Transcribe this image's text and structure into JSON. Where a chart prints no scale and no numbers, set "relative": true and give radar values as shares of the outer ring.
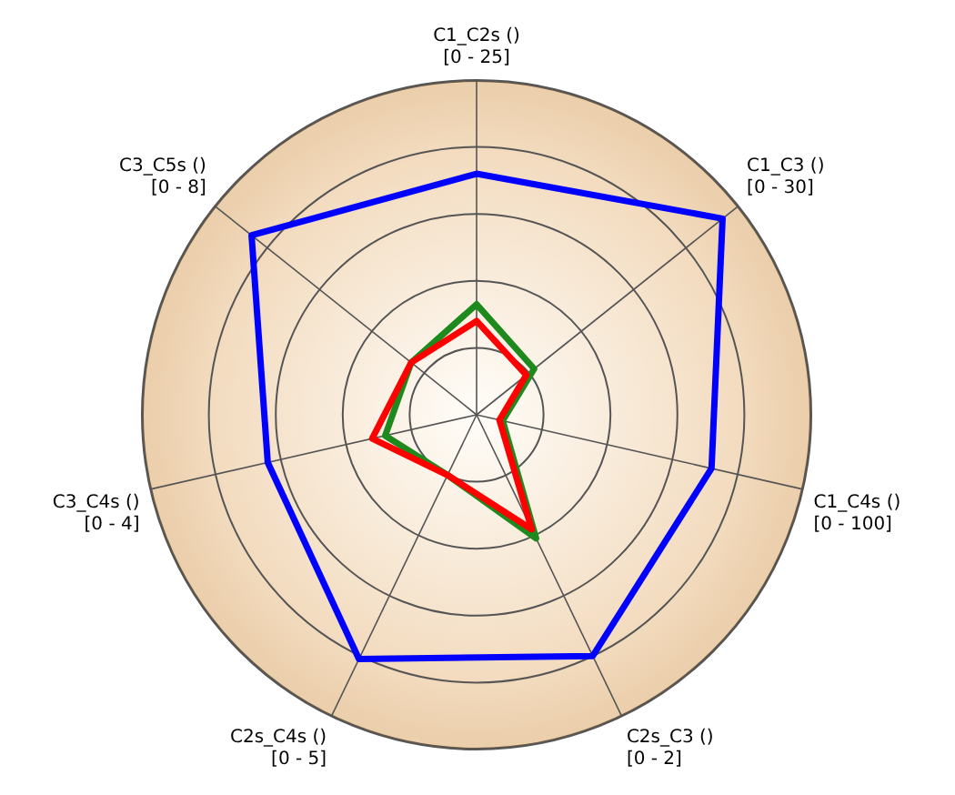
{
  "chart_data": {
    "type": "radar",
    "relative": true,
    "grid": true,
    "marker": "none",
    "legend": false,
    "categories": [
      "C1_C2s ()\n[0 - 25]",
      "C1_C3 ()\n[0 - 30]",
      "C1_C4s ()\n[0 - 100]",
      "C2s_C3 ()\n[0 - 2]",
      "C2s_C4s ()\n[0 - 5]",
      "C3_C4s ()\n[0 - 4]",
      "C3_C5s ()\n[0 - 8]"
    ],
    "series": [
      {
        "color": "#0000ff",
        "values": [
          0.72,
          0.94,
          0.72,
          0.8,
          0.81,
          0.64,
          0.86
        ]
      },
      {
        "color": "#ff0000",
        "values": [
          0.28,
          0.19,
          0.07,
          0.38,
          0.2,
          0.32,
          0.25
        ]
      },
      {
        "color": "#1e8a1e",
        "values": [
          0.33,
          0.22,
          0.08,
          0.41,
          0.2,
          0.28,
          0.25
        ]
      }
    ]
  }
}
